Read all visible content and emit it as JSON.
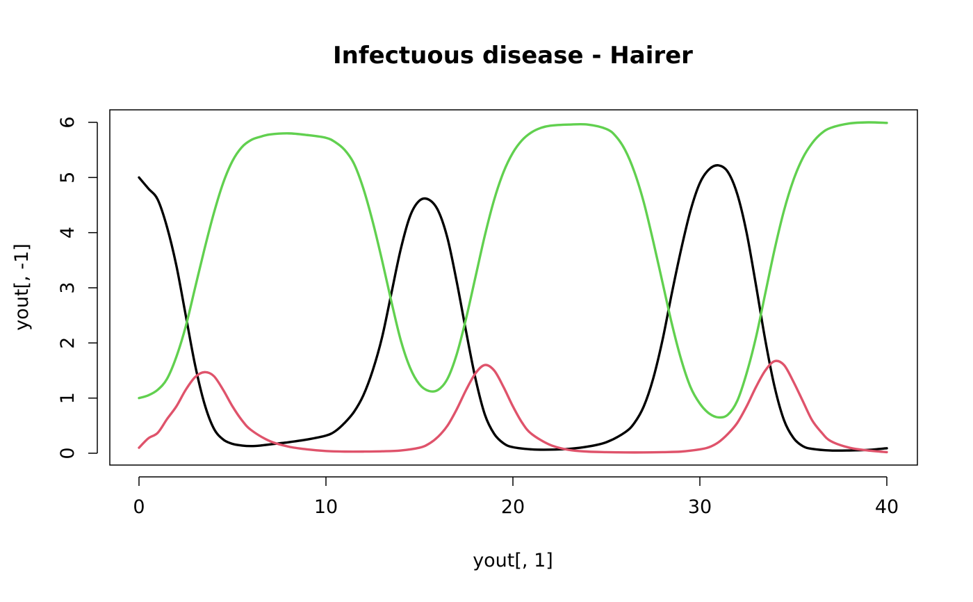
{
  "chart_data": {
    "type": "line",
    "title": "Infectuous disease - Hairer",
    "xlabel": "yout[, 1]",
    "ylabel": "yout[, -1]",
    "xlim": [
      0,
      40
    ],
    "ylim": [
      0,
      6
    ],
    "grid": false,
    "x_ticks": [
      0,
      10,
      20,
      30,
      40
    ],
    "y_ticks": [
      0,
      1,
      2,
      3,
      4,
      5,
      6
    ],
    "x_tick_labels": [
      "0",
      "10",
      "20",
      "30",
      "40"
    ],
    "y_tick_labels": [
      "0",
      "1",
      "2",
      "3",
      "4",
      "5",
      "6"
    ],
    "series": [
      {
        "color": "#000000",
        "x": [
          0,
          0.5,
          1,
          1.5,
          2,
          2.5,
          3,
          3.5,
          4,
          4.5,
          5,
          5.5,
          6,
          6.5,
          7,
          8,
          9,
          10,
          10.5,
          11,
          11.5,
          12,
          12.5,
          13,
          13.5,
          14,
          14.5,
          15,
          15.5,
          16,
          16.5,
          17,
          17.5,
          18,
          18.5,
          19,
          19.5,
          20,
          21,
          22,
          23,
          24,
          25,
          26,
          26.5,
          27,
          27.5,
          28,
          28.5,
          29,
          29.5,
          30,
          30.5,
          31,
          31.5,
          32,
          32.5,
          33,
          33.5,
          34,
          34.5,
          35,
          35.5,
          36,
          37,
          38,
          39,
          40
        ],
        "y": [
          5.0,
          4.8,
          4.6,
          4.1,
          3.4,
          2.5,
          1.6,
          0.9,
          0.45,
          0.25,
          0.17,
          0.14,
          0.13,
          0.14,
          0.16,
          0.2,
          0.25,
          0.32,
          0.4,
          0.55,
          0.75,
          1.05,
          1.5,
          2.1,
          2.9,
          3.7,
          4.3,
          4.58,
          4.6,
          4.4,
          3.9,
          3.1,
          2.2,
          1.35,
          0.7,
          0.35,
          0.18,
          0.11,
          0.07,
          0.065,
          0.08,
          0.12,
          0.2,
          0.38,
          0.55,
          0.85,
          1.35,
          2.05,
          2.9,
          3.7,
          4.4,
          4.9,
          5.15,
          5.22,
          5.1,
          4.7,
          4.0,
          3.05,
          2.05,
          1.2,
          0.6,
          0.28,
          0.13,
          0.08,
          0.05,
          0.05,
          0.06,
          0.09
        ]
      },
      {
        "color": "#DF536B",
        "x": [
          0,
          0.5,
          1,
          1.5,
          2,
          2.5,
          3,
          3.5,
          4,
          4.5,
          5,
          5.5,
          6,
          7,
          8,
          9,
          10,
          11,
          12,
          13,
          14,
          15,
          15.5,
          16,
          16.5,
          17,
          17.5,
          18,
          18.5,
          19,
          19.5,
          20,
          20.5,
          21,
          22,
          23,
          24,
          25,
          26,
          27,
          28,
          29,
          30,
          30.5,
          31,
          31.5,
          32,
          32.5,
          33,
          33.5,
          34,
          34.5,
          35,
          35.5,
          36,
          36.5,
          37,
          38,
          39,
          40
        ],
        "y": [
          0.1,
          0.27,
          0.37,
          0.62,
          0.85,
          1.15,
          1.38,
          1.47,
          1.4,
          1.15,
          0.85,
          0.6,
          0.42,
          0.22,
          0.12,
          0.07,
          0.04,
          0.03,
          0.03,
          0.035,
          0.05,
          0.1,
          0.17,
          0.3,
          0.5,
          0.8,
          1.15,
          1.45,
          1.6,
          1.5,
          1.2,
          0.85,
          0.55,
          0.35,
          0.15,
          0.06,
          0.03,
          0.02,
          0.015,
          0.015,
          0.02,
          0.03,
          0.07,
          0.11,
          0.2,
          0.35,
          0.55,
          0.85,
          1.2,
          1.5,
          1.67,
          1.6,
          1.3,
          0.95,
          0.6,
          0.38,
          0.22,
          0.1,
          0.05,
          0.02
        ]
      },
      {
        "color": "#61D04F",
        "x": [
          0,
          0.5,
          1,
          1.5,
          2,
          2.5,
          3,
          3.5,
          4,
          4.5,
          5,
          5.5,
          6,
          6.5,
          7,
          8,
          9,
          10,
          10.5,
          11,
          11.5,
          12,
          12.5,
          13,
          13.5,
          14,
          14.5,
          15,
          15.5,
          16,
          16.5,
          17,
          17.5,
          18,
          18.5,
          19,
          19.5,
          20,
          20.5,
          21,
          21.5,
          22,
          23,
          24,
          25,
          25.5,
          26,
          26.5,
          27,
          27.5,
          28,
          28.5,
          29,
          29.5,
          30,
          30.5,
          31,
          31.5,
          32,
          32.5,
          33,
          33.5,
          34,
          34.5,
          35,
          35.5,
          36,
          36.5,
          37,
          38,
          39,
          40
        ],
        "y": [
          1.0,
          1.05,
          1.15,
          1.35,
          1.75,
          2.3,
          3.0,
          3.7,
          4.35,
          4.9,
          5.3,
          5.55,
          5.68,
          5.74,
          5.78,
          5.8,
          5.77,
          5.72,
          5.64,
          5.5,
          5.25,
          4.8,
          4.2,
          3.5,
          2.75,
          2.05,
          1.55,
          1.25,
          1.13,
          1.15,
          1.35,
          1.8,
          2.45,
          3.2,
          3.95,
          4.6,
          5.1,
          5.45,
          5.68,
          5.82,
          5.9,
          5.94,
          5.96,
          5.96,
          5.88,
          5.75,
          5.5,
          5.1,
          4.55,
          3.85,
          3.1,
          2.35,
          1.7,
          1.2,
          0.9,
          0.72,
          0.65,
          0.7,
          0.95,
          1.45,
          2.1,
          2.9,
          3.7,
          4.4,
          4.95,
          5.35,
          5.62,
          5.8,
          5.9,
          5.98,
          6.0,
          5.99
        ]
      }
    ]
  }
}
